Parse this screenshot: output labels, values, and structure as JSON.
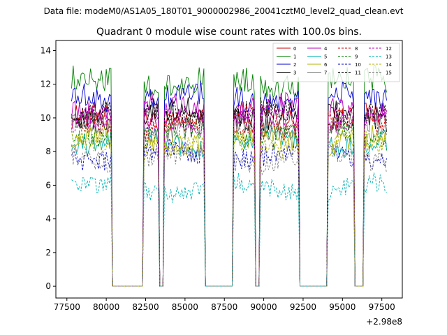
{
  "suptitle": "Data file: modeM0/AS1A05_180T01_9000002986_20041cztM0_level2_quad_clean.evt",
  "chart_data": {
    "type": "line",
    "title": "Quadrant 0 module wise count rates with 100.0s bins.",
    "xlabel": "",
    "ylabel": "",
    "offset_label": "+2.98e8",
    "xlim": [
      76800,
      98800
    ],
    "ylim": [
      -0.7,
      14.6
    ],
    "xticks": [
      77500,
      80000,
      82500,
      85000,
      87500,
      90000,
      92500,
      95000,
      97500
    ],
    "xtick_labels": [
      "77500",
      "80000",
      "82500",
      "85000",
      "87500",
      "90000",
      "92500",
      "95000",
      "97500"
    ],
    "yticks": [
      0,
      2,
      4,
      6,
      8,
      10,
      12,
      14
    ],
    "ytick_labels": [
      "0",
      "2",
      "4",
      "6",
      "8",
      "10",
      "12",
      "14"
    ],
    "bin_seconds": 100.0,
    "active_intervals": [
      [
        77800,
        80300
      ],
      [
        82400,
        83300
      ],
      [
        83700,
        86200
      ],
      [
        88100,
        89400
      ],
      [
        89800,
        92200
      ],
      [
        94100,
        95700
      ],
      [
        96400,
        97800
      ]
    ],
    "gap_level": 0,
    "legend": {
      "placement": "top-right",
      "columns": 4
    },
    "series": [
      {
        "name": "0",
        "color": "#cc0000",
        "dash": "solid",
        "level": 10.0
      },
      {
        "name": "1",
        "color": "#008000",
        "dash": "solid",
        "level": 12.1
      },
      {
        "name": "2",
        "color": "#0000cc",
        "dash": "solid",
        "level": 11.2
      },
      {
        "name": "3",
        "color": "#000000",
        "dash": "solid",
        "level": 10.2
      },
      {
        "name": "4",
        "color": "#bb00bb",
        "dash": "solid",
        "level": 10.6
      },
      {
        "name": "5",
        "color": "#00b3b3",
        "dash": "solid",
        "level": 8.6
      },
      {
        "name": "6",
        "color": "#b3b300",
        "dash": "solid",
        "level": 8.7
      },
      {
        "name": "7",
        "color": "#808080",
        "dash": "solid",
        "level": 9.4
      },
      {
        "name": "8",
        "color": "#cc0000",
        "dash": "dashed",
        "level": 9.6
      },
      {
        "name": "9",
        "color": "#008000",
        "dash": "dashed",
        "level": 9.0
      },
      {
        "name": "10",
        "color": "#0000cc",
        "dash": "dashed",
        "level": 7.8
      },
      {
        "name": "11",
        "color": "#000000",
        "dash": "dashed",
        "level": 10.3
      },
      {
        "name": "12",
        "color": "#bb00bb",
        "dash": "dashed",
        "level": 9.9
      },
      {
        "name": "13",
        "color": "#00b3b3",
        "dash": "dashed",
        "level": 5.8
      },
      {
        "name": "14",
        "color": "#b3b300",
        "dash": "dashed",
        "level": 8.4
      },
      {
        "name": "15",
        "color": "#808080",
        "dash": "dashed",
        "level": 7.6
      }
    ]
  }
}
